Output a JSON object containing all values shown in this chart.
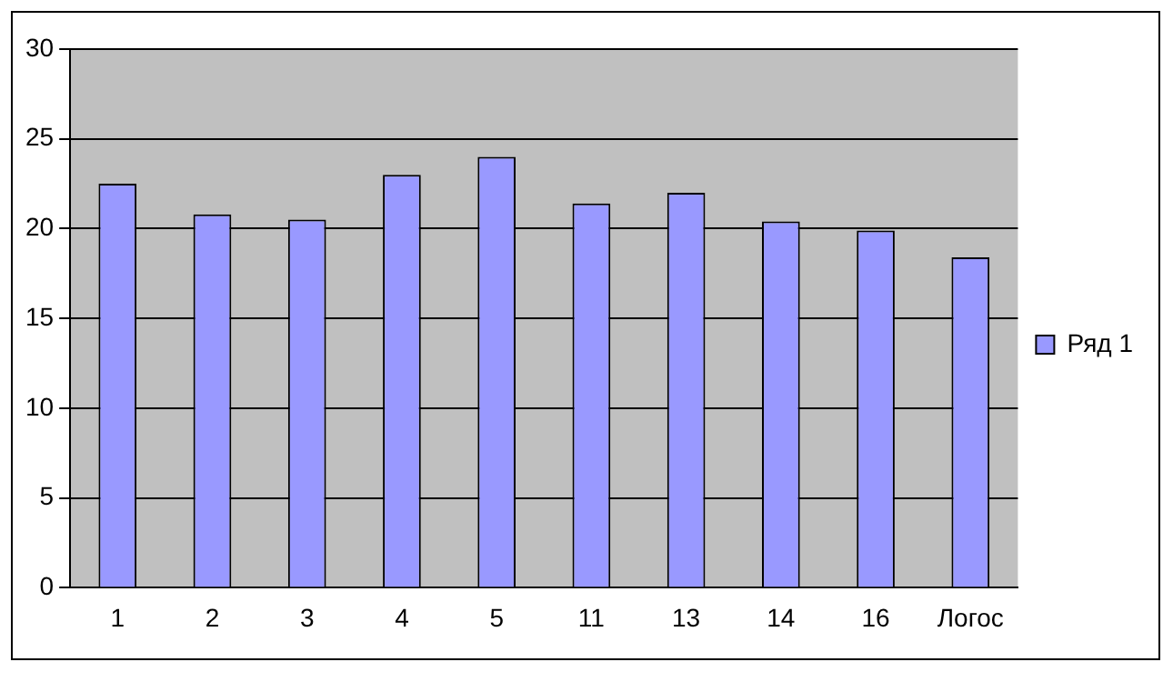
{
  "chart_data": {
    "type": "bar",
    "categories": [
      "1",
      "2",
      "3",
      "4",
      "5",
      "11",
      "13",
      "14",
      "16",
      "Логос"
    ],
    "series": [
      {
        "name": "Ряд 1",
        "color": "#9999ff",
        "values": [
          22.5,
          20.8,
          20.5,
          23.0,
          24.0,
          21.4,
          22.0,
          20.4,
          19.9,
          18.4
        ]
      }
    ],
    "ylim": [
      0,
      30
    ],
    "yticks": [
      0,
      5,
      10,
      15,
      20,
      25,
      30
    ],
    "grid": "y",
    "legend": "right"
  }
}
